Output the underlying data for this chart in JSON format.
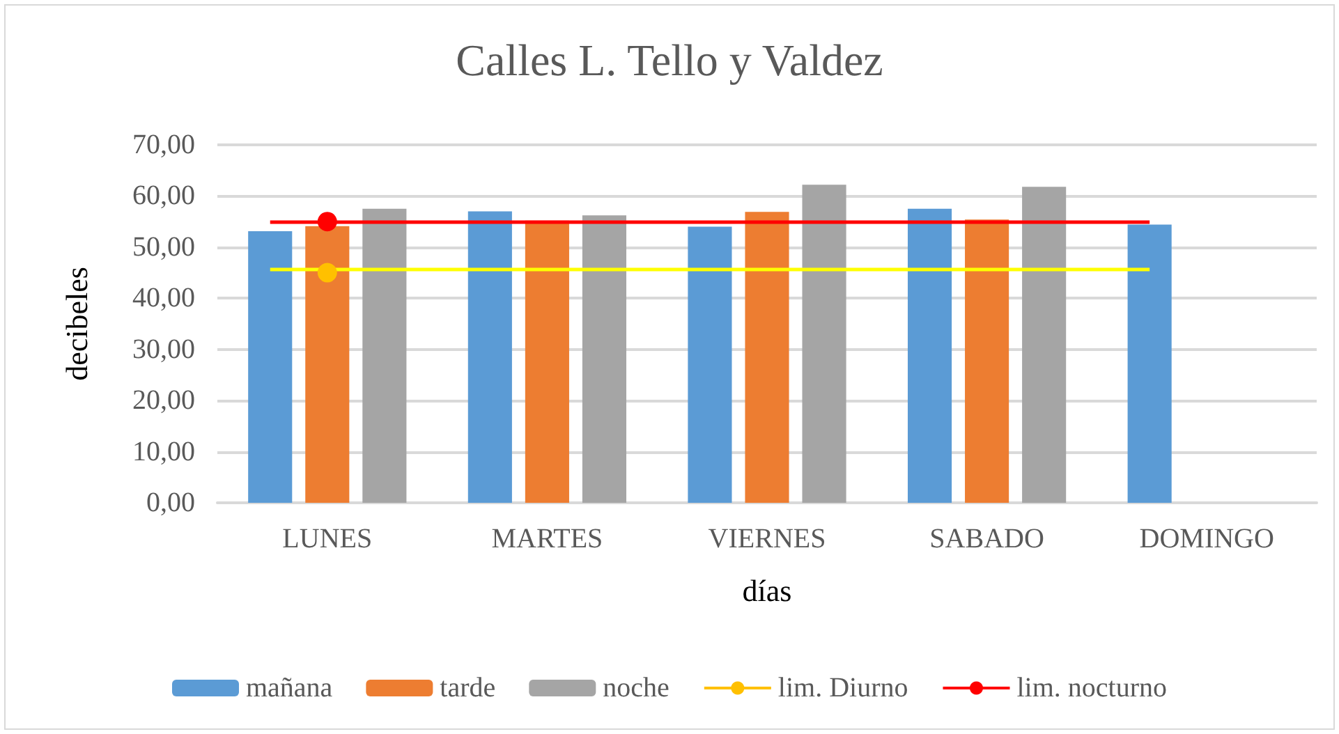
{
  "chart_data": {
    "type": "bar",
    "title": "Calles L. Tello y Valdez",
    "xlabel": "días",
    "ylabel": "decibeles",
    "categories": [
      "LUNES",
      "MARTES",
      "VIERNES",
      "SABADO",
      "DOMINGO"
    ],
    "series": [
      {
        "name": "mañana",
        "color": "#5b9bd5",
        "values": [
          53.1,
          57.0,
          54.0,
          57.5,
          54.4
        ]
      },
      {
        "name": "tarde",
        "color": "#ed7d31",
        "values": [
          54.1,
          55.2,
          56.9,
          55.4,
          null
        ]
      },
      {
        "name": "noche",
        "color": "#a5a5a5",
        "values": [
          57.5,
          56.2,
          62.2,
          61.8,
          null
        ]
      },
      {
        "name": "lim. Diurno",
        "type": "line",
        "color": "#ffc000",
        "marker": "circle",
        "values": [
          45,
          null,
          null,
          null,
          null
        ]
      },
      {
        "name": "lim. nocturno",
        "type": "line",
        "color": "#ff0000",
        "marker": "circle",
        "values": [
          55,
          null,
          null,
          null,
          null
        ]
      }
    ],
    "ref_lines": [
      {
        "axis": "y",
        "value": 45.8,
        "color": "#ffff00"
      },
      {
        "axis": "y",
        "value": 55.0,
        "color": "#ff0000"
      }
    ],
    "ylim": [
      0,
      70
    ],
    "yticks": [
      {
        "value": 0,
        "label": "0,00"
      },
      {
        "value": 10,
        "label": "10,00"
      },
      {
        "value": 20,
        "label": "20,00"
      },
      {
        "value": 30,
        "label": "30,00"
      },
      {
        "value": 40,
        "label": "40,00"
      },
      {
        "value": 50,
        "label": "50,00"
      },
      {
        "value": 60,
        "label": "60,00"
      },
      {
        "value": 70,
        "label": "70,00"
      }
    ],
    "grid": "y",
    "legend": "bottom"
  }
}
